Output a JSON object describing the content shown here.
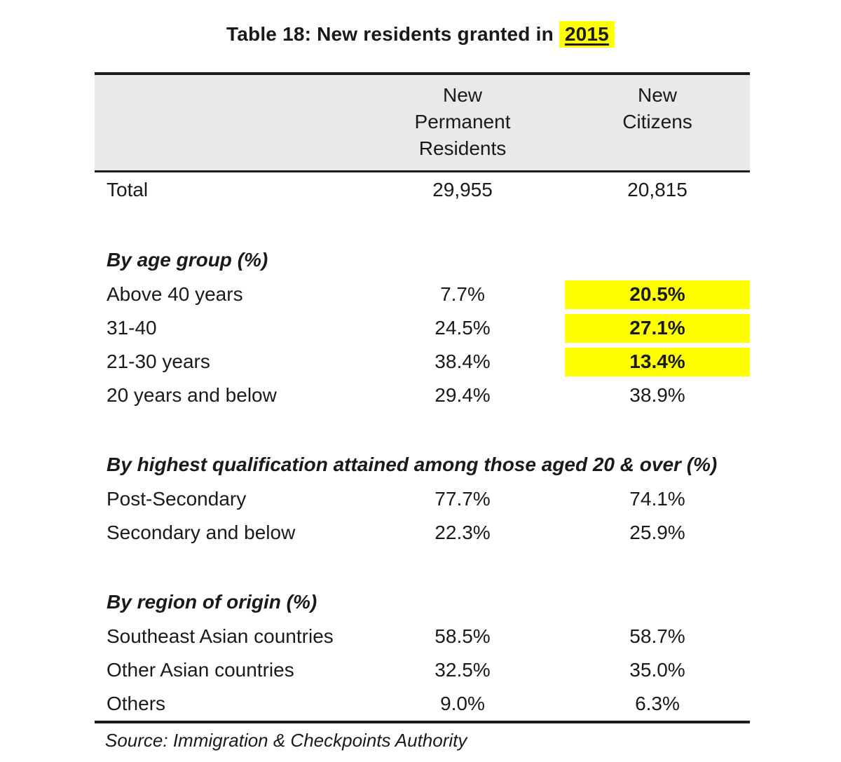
{
  "title": {
    "prefix": "Table 18: New residents granted in ",
    "highlight": "2015"
  },
  "table_header": {
    "pr_label": "New\nPermanent\nResidents",
    "nc_label": "New\nCitizens"
  },
  "source_note": "Source: Immigration & Checkpoints Authority",
  "colors": {
    "highlight_yellow": "#ffff00",
    "header_background": "#e9e9e9",
    "border_black": "#1b1b1b"
  },
  "chart_data": {
    "type": "table",
    "title": "Table 18: New residents granted in 2015",
    "columns": [
      "",
      "New Permanent Residents",
      "New Citizens"
    ],
    "sections": [
      {
        "name": null,
        "rows": [
          {
            "label": "Total",
            "pr": "29,955",
            "nc": "20,815",
            "highlight_nc": false
          }
        ]
      },
      {
        "name": "By age group (%)",
        "rows": [
          {
            "label": "Above 40 years",
            "pr": "7.7%",
            "nc": "20.5%",
            "highlight_nc": true
          },
          {
            "label": "31-40",
            "pr": "24.5%",
            "nc": "27.1%",
            "highlight_nc": true
          },
          {
            "label": "21-30 years",
            "pr": "38.4%",
            "nc": "13.4%",
            "highlight_nc": true
          },
          {
            "label": "20 years and below",
            "pr": "29.4%",
            "nc": "38.9%",
            "highlight_nc": false
          }
        ]
      },
      {
        "name": "By highest qualification attained among those aged 20 & over (%)",
        "rows": [
          {
            "label": "Post-Secondary",
            "pr": "77.7%",
            "nc": "74.1%",
            "highlight_nc": false
          },
          {
            "label": "Secondary and below",
            "pr": "22.3%",
            "nc": "25.9%",
            "highlight_nc": false
          }
        ]
      },
      {
        "name": "By region of origin (%)",
        "rows": [
          {
            "label": "Southeast Asian countries",
            "pr": "58.5%",
            "nc": "58.7%",
            "highlight_nc": false
          },
          {
            "label": "Other Asian countries",
            "pr": "32.5%",
            "nc": "35.0%",
            "highlight_nc": false
          },
          {
            "label": "Others",
            "pr": "9.0%",
            "nc": "6.3%",
            "highlight_nc": false
          }
        ]
      }
    ],
    "highlighted_values": [
      "2015",
      "20.5%",
      "27.1%",
      "13.4%"
    ],
    "source": "Source: Immigration & Checkpoints Authority"
  }
}
